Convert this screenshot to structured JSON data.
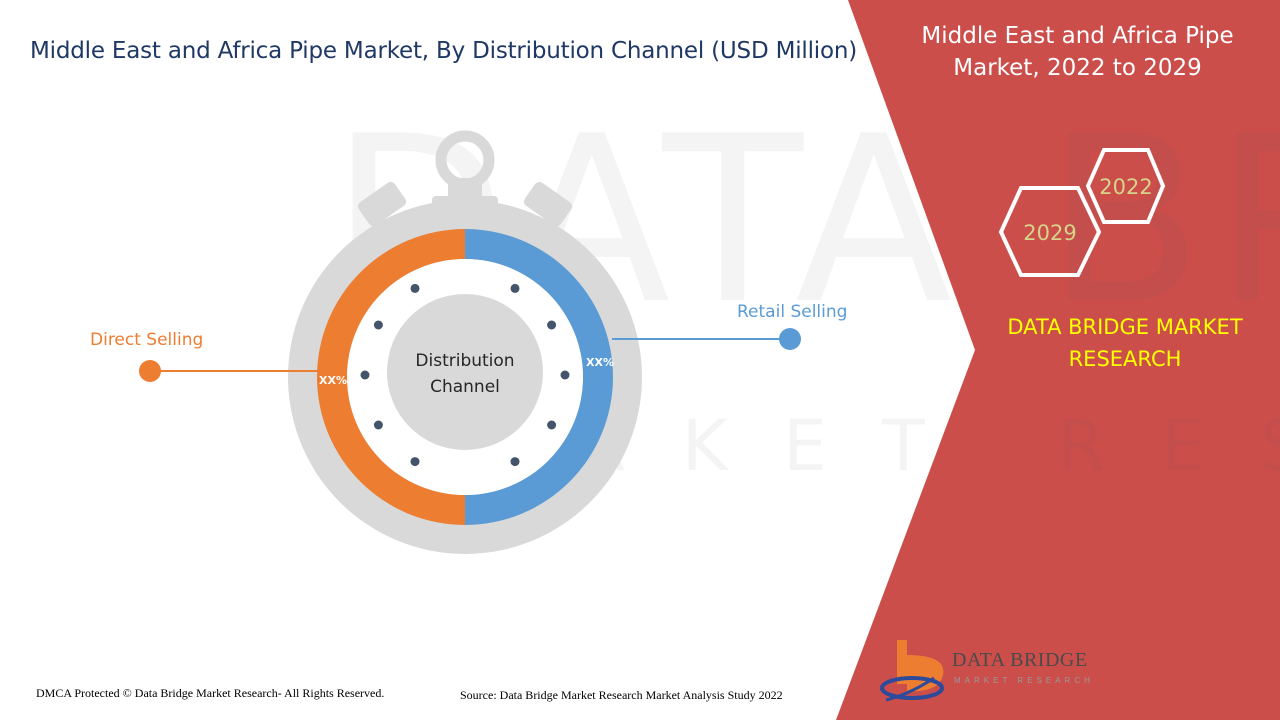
{
  "title": "Middle East and Africa Pipe Market, By Distribution Channel (USD Million)",
  "side_panel": {
    "title": "Middle East and Africa Pipe Market, 2022 to 2029",
    "year_start": "2022",
    "year_end": "2029",
    "brand": "DATA BRIDGE MARKET RESEARCH"
  },
  "chart_data": {
    "type": "pie",
    "center_label": "Distribution Channel",
    "series": [
      {
        "name": "Retail Selling",
        "value_label": "XX%",
        "share": 50,
        "color": "#5b9bd5"
      },
      {
        "name": "Direct Selling",
        "value_label": "XX%",
        "share": 50,
        "color": "#ed7d31"
      }
    ]
  },
  "footer": {
    "copyright": "DMCA Protected © Data Bridge Market Research- All Rights Reserved.",
    "source": "Source: Data Bridge Market Research Market Analysis Study 2022"
  },
  "logo": {
    "name": "DATA BRIDGE",
    "subtitle": "MARKET RESEARCH"
  },
  "colors": {
    "panel": "#cb4e4b",
    "title": "#1f3864",
    "brand_text": "#ffff00",
    "stopwatch": "#d9d9d9"
  }
}
